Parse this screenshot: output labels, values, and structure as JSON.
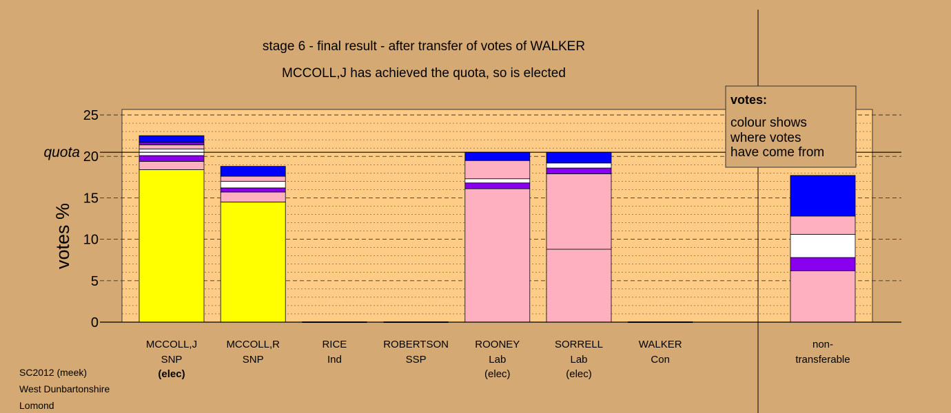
{
  "chart_data": {
    "type": "bar",
    "stacked": true,
    "title": "stage 6 - final result - after transfer of votes of WALKER",
    "subtitle": "MCCOLL,J has achieved the quota, so is elected",
    "ylabel": "votes %",
    "ylim": [
      0,
      25
    ],
    "yticks": [
      "0",
      "5",
      "10",
      "15",
      "20",
      "25"
    ],
    "quota": 20.5,
    "quota_label": "quota",
    "grid": true,
    "colors": {
      "SNP": "#ffff00",
      "Lab": "#ffb0c0",
      "SSP": "#8800ee",
      "Ind": "#ffffff",
      "Con": "#0000ff",
      "plot_bg": "#ffcc88",
      "page_bg": "#d4a973"
    },
    "categories": [
      {
        "name": "MCCOLL,J",
        "party": "SNP",
        "status": "(elec)",
        "bold_status": true,
        "segments": [
          {
            "value": 18.4,
            "color": "#ffff00"
          },
          {
            "value": 1.0,
            "color": "#ffb0c0"
          },
          {
            "value": 0.7,
            "color": "#8800ee"
          },
          {
            "value": 0.8,
            "color": "#ffffff"
          },
          {
            "value": 0.5,
            "color": "#ffb0c0"
          },
          {
            "value": 0.3,
            "color": "#8800ee"
          },
          {
            "value": 0.8,
            "color": "#0000ff"
          }
        ]
      },
      {
        "name": "MCCOLL,R",
        "party": "SNP",
        "status": "",
        "bold_status": false,
        "segments": [
          {
            "value": 14.5,
            "color": "#ffff00"
          },
          {
            "value": 1.2,
            "color": "#ffb0c0"
          },
          {
            "value": 0.5,
            "color": "#8800ee"
          },
          {
            "value": 0.8,
            "color": "#ffffff"
          },
          {
            "value": 0.6,
            "color": "#ffb0c0"
          },
          {
            "value": 1.2,
            "color": "#0000ff"
          }
        ]
      },
      {
        "name": "RICE",
        "party": "Ind",
        "status": "",
        "bold_status": false,
        "segments": []
      },
      {
        "name": "ROBERTSON",
        "party": "SSP",
        "status": "",
        "bold_status": false,
        "segments": []
      },
      {
        "name": "ROONEY",
        "party": "Lab",
        "status": "(elec)",
        "bold_status": false,
        "segments": [
          {
            "value": 16.1,
            "color": "#ffb0c0"
          },
          {
            "value": 0.7,
            "color": "#8800ee"
          },
          {
            "value": 0.5,
            "color": "#ffffff"
          },
          {
            "value": 2.2,
            "color": "#ffb0c0"
          },
          {
            "value": 1.0,
            "color": "#0000ff"
          }
        ]
      },
      {
        "name": "SORRELL",
        "party": "Lab",
        "status": "(elec)",
        "bold_status": false,
        "segments": [
          {
            "value": 8.8,
            "color": "#ffb0c0"
          },
          {
            "value": 9.1,
            "color": "#ffb0c0"
          },
          {
            "value": 0.7,
            "color": "#8800ee"
          },
          {
            "value": 0.6,
            "color": "#ffffff"
          },
          {
            "value": 1.3,
            "color": "#0000ff"
          }
        ]
      },
      {
        "name": "WALKER",
        "party": "Con",
        "status": "",
        "bold_status": false,
        "segments": []
      }
    ],
    "non_transferable": {
      "label_line1": "non-",
      "label_line2": "transferable",
      "segments": [
        {
          "value": 6.2,
          "color": "#ffb0c0"
        },
        {
          "value": 1.6,
          "color": "#8800ee"
        },
        {
          "value": 2.8,
          "color": "#ffffff"
        },
        {
          "value": 2.2,
          "color": "#ffb0c0"
        },
        {
          "value": 4.9,
          "color": "#0000ff"
        }
      ]
    },
    "legend": {
      "heading": "votes:",
      "lines": [
        "colour shows",
        "where votes",
        "have come from"
      ]
    }
  },
  "footer": {
    "line1": "SC2012 (meek)",
    "line2": "West Dunbartonshire",
    "line3": "Lomond"
  }
}
